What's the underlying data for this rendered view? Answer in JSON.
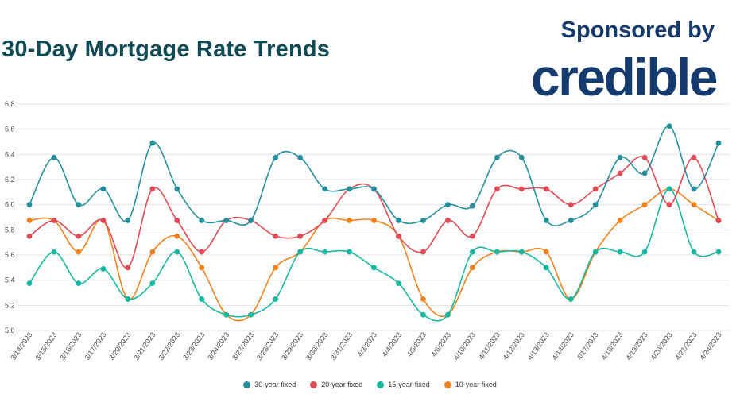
{
  "header": {
    "title": "30-Day Mortgage Rate Trends",
    "sponsor_text": "Sponsored by",
    "brand": "credible"
  },
  "chart_data": {
    "type": "line",
    "title": "30-Day Mortgage Rate Trends",
    "xlabel": "",
    "ylabel": "",
    "ylim": [
      5.0,
      6.8
    ],
    "yticks": [
      "6.8",
      "6.6",
      "6.4",
      "6.2",
      "6.0",
      "5.8",
      "5.6",
      "5.4",
      "5.2",
      "5.0"
    ],
    "grid": true,
    "legend_position": "bottom",
    "categories": [
      "3/14/2023",
      "3/15/2023",
      "3/16/2023",
      "3/17/2023",
      "3/20/2023",
      "3/21/2023",
      "3/22/2023",
      "3/23/2023",
      "3/24/2023",
      "3/27/2023",
      "3/28/2023",
      "3/29/2023",
      "3/30/2023",
      "3/31/2023",
      "4/3/2023",
      "4/4/2023",
      "4/5/2023",
      "4/6/2023",
      "4/10/2023",
      "4/11/2023",
      "4/12/2023",
      "4/13/2023",
      "4/14/2023",
      "4/17/2023",
      "4/18/2023",
      "4/19/2023",
      "4/20/2023",
      "4/21/2023",
      "4/24/2023"
    ],
    "series": [
      {
        "name": "30-year fixed",
        "color": "#258f9e",
        "values": [
          6.0,
          6.375,
          6.0,
          6.125,
          5.875,
          6.49,
          6.125,
          5.875,
          5.875,
          5.875,
          6.375,
          6.375,
          6.125,
          6.125,
          6.125,
          5.875,
          5.875,
          6.0,
          5.99,
          6.375,
          6.375,
          5.875,
          5.875,
          6.0,
          6.375,
          6.25,
          6.625,
          6.125,
          6.49
        ]
      },
      {
        "name": "20-year fixed",
        "color": "#df4a55",
        "values": [
          5.75,
          5.875,
          5.75,
          5.875,
          5.5,
          6.125,
          5.875,
          5.625,
          5.875,
          5.875,
          5.75,
          5.75,
          5.875,
          6.125,
          6.125,
          5.75,
          5.625,
          5.875,
          5.75,
          6.125,
          6.125,
          6.125,
          6.0,
          6.125,
          6.25,
          6.375,
          6.0,
          6.375,
          5.875
        ]
      },
      {
        "name": "15-year-fixed",
        "color": "#16b8a1",
        "values": [
          5.375,
          5.625,
          5.375,
          5.49,
          5.25,
          5.375,
          5.625,
          5.25,
          5.125,
          5.125,
          5.25,
          5.625,
          5.625,
          5.625,
          5.5,
          5.375,
          5.125,
          5.125,
          5.625,
          5.625,
          5.625,
          5.5,
          5.25,
          5.625,
          5.625,
          5.625,
          6.125,
          5.625,
          5.625
        ]
      },
      {
        "name": "10-year fixed",
        "color": "#f0821e",
        "values": [
          5.875,
          5.875,
          5.625,
          5.875,
          5.25,
          5.625,
          5.75,
          5.5,
          5.125,
          5.125,
          5.5,
          5.625,
          5.875,
          5.875,
          5.875,
          5.75,
          5.25,
          5.125,
          5.5,
          5.625,
          5.625,
          5.625,
          5.25,
          5.625,
          5.875,
          6.0,
          6.125,
          6.0,
          5.875
        ]
      }
    ]
  }
}
